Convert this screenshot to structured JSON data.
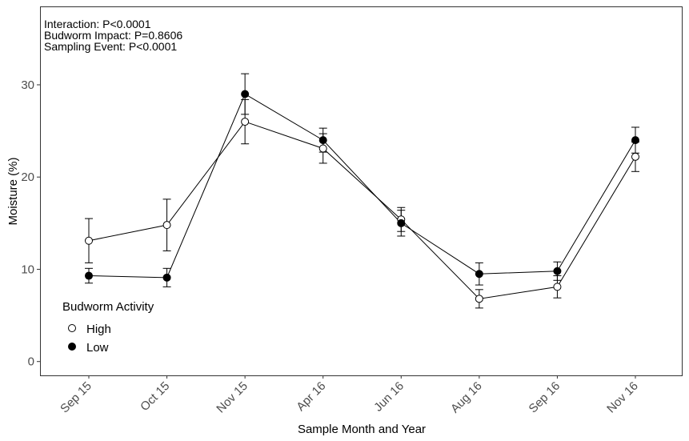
{
  "chart_data": {
    "type": "line",
    "xlabel": "Sample Month and Year",
    "ylabel": "Moisture (%)",
    "categories": [
      "Sep 15",
      "Oct 15",
      "Nov 15",
      "Apr 16",
      "Jun 16",
      "Aug 16",
      "Sep 16",
      "Nov 16"
    ],
    "yticks": [
      0,
      10,
      20,
      30
    ],
    "ylim": [
      -1.5,
      38.5
    ],
    "grid": false,
    "annotations": [
      "Interaction: P<0.0001",
      "Budworm Impact: P=0.8606",
      "Sampling Event: P<0.0001"
    ],
    "legend": {
      "title": "Budworm Activity",
      "placement": "bottom-left"
    },
    "series": [
      {
        "name": "High",
        "marker": "open-circle",
        "values": [
          13.1,
          14.8,
          26.0,
          23.1,
          15.4,
          6.8,
          8.1,
          22.2
        ],
        "lower": [
          10.7,
          12.0,
          23.6,
          21.5,
          14.1,
          5.8,
          6.9,
          20.6
        ],
        "upper": [
          15.5,
          17.6,
          28.4,
          24.7,
          16.7,
          7.8,
          9.3,
          23.8
        ]
      },
      {
        "name": "Low",
        "marker": "filled-circle",
        "values": [
          9.3,
          9.1,
          29.0,
          24.0,
          15.0,
          9.5,
          9.8,
          24.0
        ],
        "lower": [
          8.5,
          8.1,
          26.8,
          22.7,
          13.6,
          8.3,
          8.8,
          22.6
        ],
        "upper": [
          10.1,
          10.1,
          31.2,
          25.3,
          16.4,
          10.7,
          10.8,
          25.4
        ]
      }
    ],
    "colors": {
      "line": "#000000",
      "open_fill": "#ffffff",
      "filled_fill": "#000000",
      "tick_text": "#4d4d4d"
    }
  }
}
